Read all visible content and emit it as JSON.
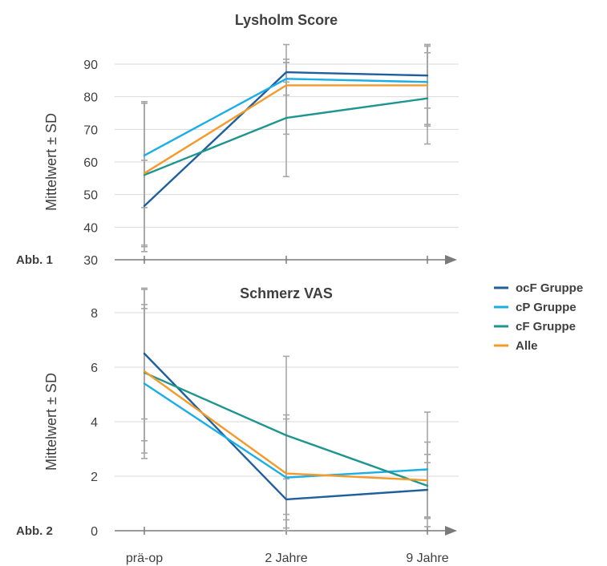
{
  "figure_tags": [
    "Abb. 1",
    "Abb. 2"
  ],
  "legend": [
    {
      "label": "ocF Gruppe",
      "color": "#1f5f9e"
    },
    {
      "label": "cP Gruppe",
      "color": "#1aaee6"
    },
    {
      "label": "cF Gruppe",
      "color": "#1f9590"
    },
    {
      "label": "Alle",
      "color": "#f39a2d"
    }
  ],
  "chart_data": [
    {
      "type": "line",
      "title": "Lysholm Score",
      "xlabel": "",
      "ylabel": "Mittelwert ± SD",
      "categories": [
        "prä-op",
        "2 Jahre",
        "9 Jahre"
      ],
      "ylim": [
        30,
        96
      ],
      "yticks": [
        30,
        40,
        50,
        60,
        70,
        80,
        90
      ],
      "show_x_tick_labels": false,
      "series": [
        {
          "name": "ocF Gruppe",
          "values": [
            46.5,
            87.5,
            86.5
          ],
          "sd": [
            14,
            3,
            10
          ],
          "color": "#1f5f9e"
        },
        {
          "name": "cP Gruppe",
          "values": [
            62,
            85.5,
            84.5
          ],
          "sd": [
            16,
            5,
            13.5
          ],
          "color": "#1aaee6"
        },
        {
          "name": "cF Gruppe",
          "values": [
            56,
            73.5,
            79.5
          ],
          "sd": [
            22,
            18,
            14
          ],
          "color": "#1f9590"
        },
        {
          "name": "Alle",
          "values": [
            56.5,
            83.5,
            83.5
          ],
          "sd": [
            22,
            15,
            12
          ],
          "color": "#f39a2d"
        }
      ]
    },
    {
      "type": "line",
      "title": "Schmerz VAS",
      "xlabel": "",
      "ylabel": "Mittelwert ± SD",
      "categories": [
        "prä-op",
        "2 Jahre",
        "9 Jahre"
      ],
      "ylim": [
        0,
        9
      ],
      "yticks": [
        0,
        2,
        4,
        6,
        8
      ],
      "show_x_tick_labels": true,
      "series": [
        {
          "name": "ocF Gruppe",
          "values": [
            6.5,
            1.15,
            1.5
          ],
          "sd": [
            2.4,
            0.75,
            1.0
          ],
          "color": "#1f5f9e"
        },
        {
          "name": "cP Gruppe",
          "values": [
            5.4,
            1.95,
            2.25
          ],
          "sd": [
            2.75,
            2.3,
            2.1
          ],
          "color": "#1aaee6"
        },
        {
          "name": "cF Gruppe",
          "values": [
            5.8,
            3.5,
            1.65
          ],
          "sd": [
            2.5,
            2.9,
            1.15
          ],
          "color": "#1f9590"
        },
        {
          "name": "Alle",
          "values": [
            5.85,
            2.1,
            1.85
          ],
          "sd": [
            3.0,
            2.0,
            1.4
          ],
          "color": "#f39a2d"
        }
      ]
    }
  ]
}
